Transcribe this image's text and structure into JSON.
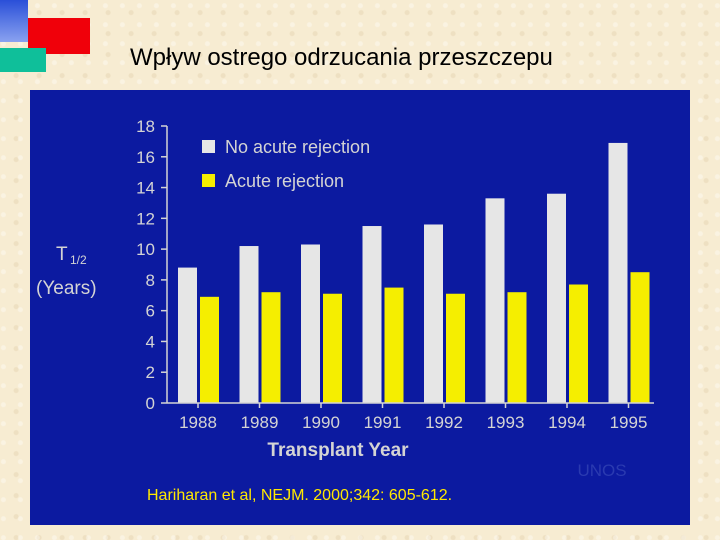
{
  "slide": {
    "title": "Wpływ ostrego odrzucania przeszczepu"
  },
  "colors": {
    "panel": "#0c1aa0",
    "series_no_rejection": "#e6e6e6",
    "series_acute_rejection": "#f5ee00",
    "axis_text": "#d4d4d4",
    "source_text": "#ffe800"
  },
  "chart_data": {
    "type": "bar",
    "categories": [
      "1988",
      "1989",
      "1990",
      "1991",
      "1992",
      "1993",
      "1994",
      "1995"
    ],
    "series": [
      {
        "name": "No acute rejection",
        "values": [
          8.8,
          10.2,
          10.3,
          11.5,
          11.6,
          13.3,
          13.6,
          16.9
        ]
      },
      {
        "name": "Acute rejection",
        "values": [
          6.9,
          7.2,
          7.1,
          7.5,
          7.1,
          7.2,
          7.7,
          8.5
        ]
      }
    ],
    "xlabel": "Transplant Year",
    "ylabel_main": "T",
    "ylabel_sub": "1/2",
    "ylabel_unit": "(Years)",
    "ylim": [
      0,
      18
    ],
    "yticks": [
      "0",
      "2",
      "4",
      "6",
      "8",
      "10",
      "12",
      "14",
      "16",
      "18"
    ],
    "legend_position": "top-left",
    "grid": false,
    "source": "Hariharan et al, NEJM. 2000;342: 605-612.",
    "watermark": "UNOS"
  }
}
